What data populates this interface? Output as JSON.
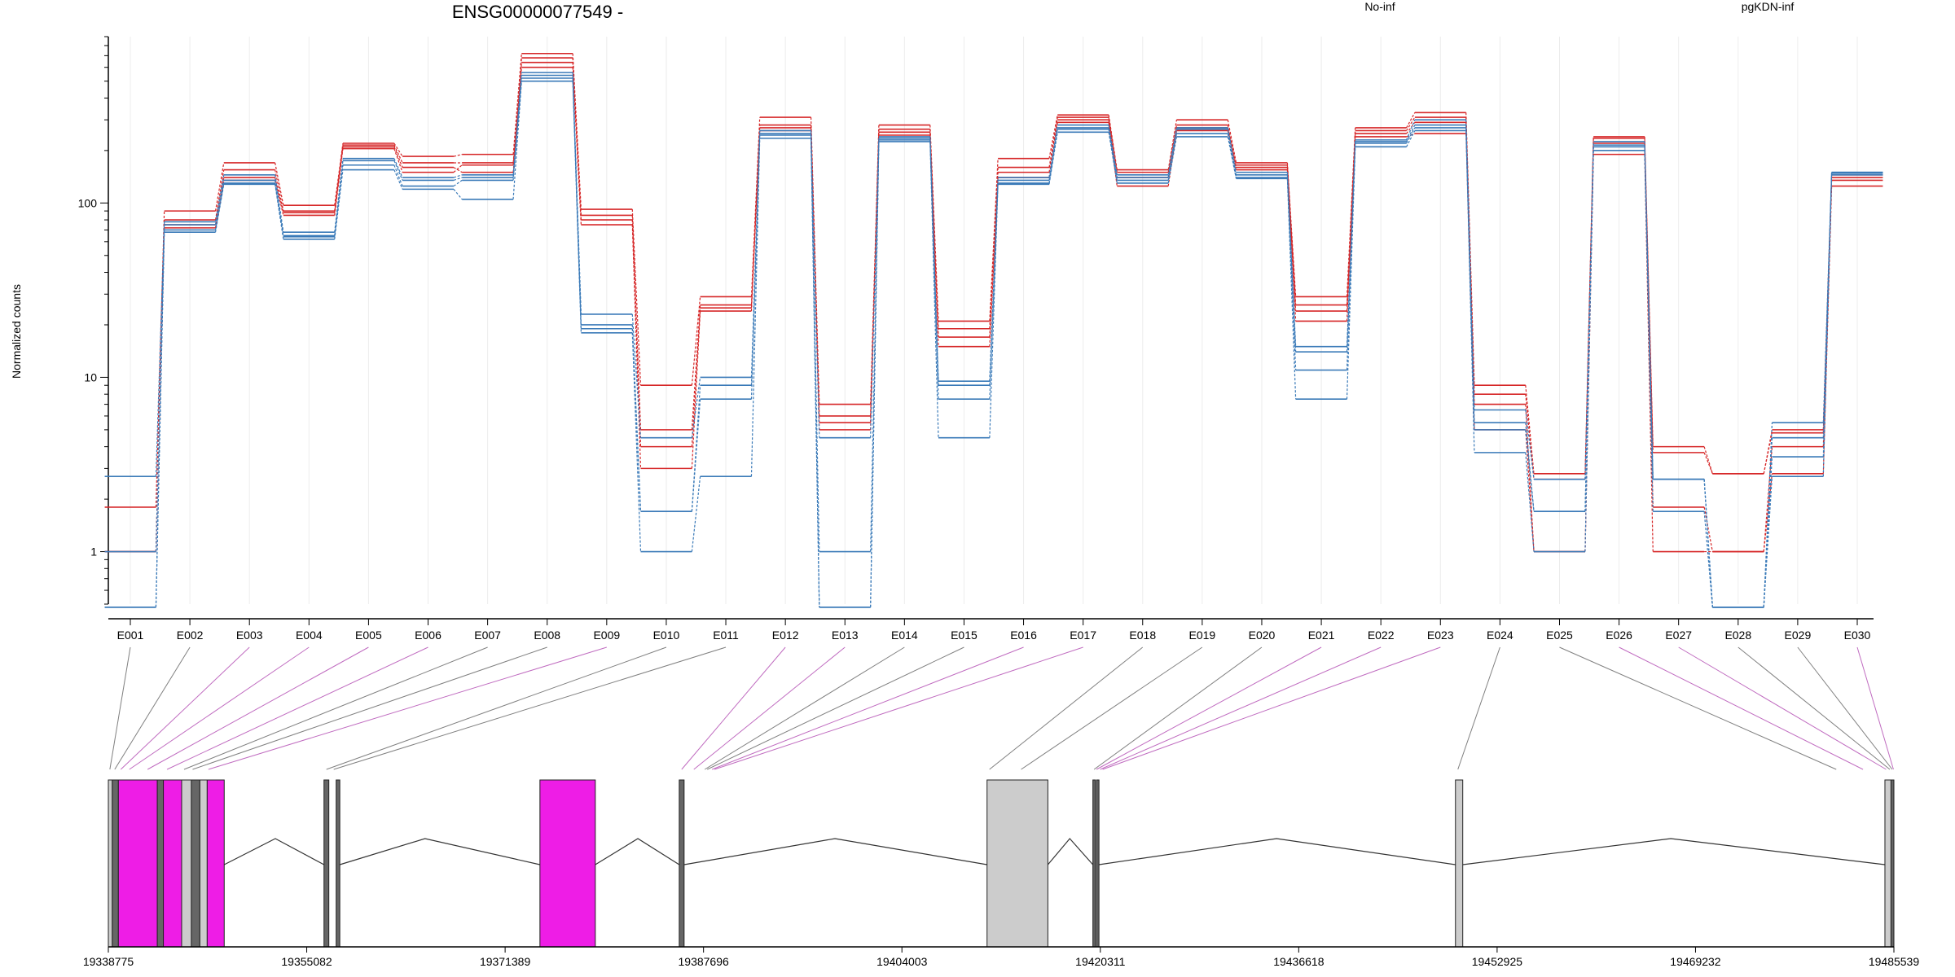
{
  "chart_data": {
    "type": "line",
    "title": "ENSG00000077549 -",
    "ylabel": "Normalized counts",
    "xlabel": "",
    "y_scale": "log",
    "ylim": [
      0.5,
      900
    ],
    "y_ticks": [
      1,
      10,
      100
    ],
    "y_tick_labels": [
      "1",
      "10",
      "100"
    ],
    "grid": "light vertical gridlines at each exon",
    "legend_placement": "top, horizontal",
    "categories": [
      "E001",
      "E002",
      "E003",
      "E004",
      "E005",
      "E006",
      "E007",
      "E008",
      "E009",
      "E010",
      "E011",
      "E012",
      "E013",
      "E014",
      "E015",
      "E016",
      "E017",
      "E018",
      "E019",
      "E020",
      "E021",
      "E022",
      "E023",
      "E024",
      "E025",
      "E026",
      "E027",
      "E028",
      "E029",
      "E030"
    ],
    "groups": [
      {
        "name": "No-inf",
        "color": "#d62728"
      },
      {
        "name": "pgKDN-inf",
        "color": "#3a7ab8"
      }
    ],
    "series": [
      {
        "group": "No-inf",
        "values": [
          1.8,
          90,
          170,
          97,
          220,
          185,
          190,
          720,
          92,
          9,
          29,
          310,
          7,
          280,
          21,
          180,
          320,
          155,
          300,
          170,
          29,
          270,
          330,
          9,
          2.8,
          240,
          4,
          2.8,
          5,
          140
        ]
      },
      {
        "group": "No-inf",
        "values": [
          1.0,
          80,
          155,
          90,
          215,
          170,
          170,
          680,
          85,
          5,
          26,
          280,
          6,
          265,
          19,
          160,
          310,
          150,
          280,
          165,
          26,
          260,
          310,
          8,
          2.6,
          235,
          3.7,
          2.8,
          4.8,
          145
        ]
      },
      {
        "group": "No-inf",
        "values": [
          1.0,
          75,
          140,
          88,
          210,
          160,
          150,
          640,
          80,
          4,
          25,
          270,
          5.5,
          255,
          17,
          150,
          300,
          140,
          270,
          160,
          24,
          250,
          290,
          7,
          1.0,
          220,
          1.8,
          1.0,
          4,
          135
        ]
      },
      {
        "group": "No-inf",
        "values": [
          1.0,
          72,
          135,
          85,
          205,
          150,
          165,
          600,
          75,
          3,
          24,
          260,
          5,
          245,
          15,
          140,
          290,
          125,
          260,
          155,
          21,
          240,
          250,
          5,
          1.0,
          190,
          1.0,
          1.0,
          2.8,
          125
        ]
      },
      {
        "group": "pgKDN-inf",
        "values": [
          2.7,
          78,
          145,
          68,
          180,
          140,
          145,
          560,
          23,
          4.5,
          10,
          260,
          4.5,
          240,
          9.5,
          140,
          280,
          145,
          270,
          150,
          15,
          230,
          300,
          6.5,
          2.6,
          225,
          2.6,
          0.48,
          5.5,
          150
        ]
      },
      {
        "group": "pgKDN-inf",
        "values": [
          1.0,
          75,
          135,
          64,
          175,
          135,
          140,
          540,
          20,
          1.7,
          9,
          250,
          0.48,
          235,
          9,
          135,
          270,
          140,
          265,
          145,
          14,
          225,
          280,
          5.5,
          1.7,
          215,
          2.6,
          0.48,
          4.5,
          145
        ]
      },
      {
        "group": "pgKDN-inf",
        "values": [
          0.48,
          70,
          130,
          65,
          165,
          125,
          135,
          520,
          19,
          1.7,
          7.5,
          245,
          1.0,
          230,
          7.5,
          130,
          265,
          135,
          250,
          140,
          11,
          220,
          270,
          5,
          1.7,
          210,
          2.6,
          0.48,
          3.5,
          150
        ]
      },
      {
        "group": "pgKDN-inf",
        "values": [
          0.48,
          68,
          128,
          62,
          155,
          120,
          105,
          500,
          18,
          1.0,
          2.7,
          235,
          0.48,
          225,
          4.5,
          128,
          255,
          130,
          240,
          138,
          7.5,
          210,
          260,
          3.7,
          1.0,
          200,
          1.7,
          0.48,
          2.7,
          148
        ]
      }
    ],
    "gene_model": {
      "x_tick_labels": [
        "19338775",
        "19355082",
        "19371389",
        "19387696",
        "19404003",
        "19420311",
        "19436618",
        "19452925",
        "19469232",
        "19485539"
      ],
      "x_tick_values": [
        19338775,
        19355082,
        19371389,
        19387696,
        19404003,
        19420311,
        19436618,
        19452925,
        19469232,
        19485539
      ],
      "range": [
        19338775,
        19485539
      ],
      "feature_colors": {
        "significant": "#ee1de6",
        "normal": "#cccccc",
        "thin": "#666666",
        "link_significant": "#c06cc0",
        "link_normal": "#808080"
      },
      "exon_genomic_positions": [
        19338900,
        19339300,
        19339800,
        19340500,
        19342000,
        19343600,
        19345000,
        19345700,
        19347000,
        19356700,
        19357300,
        19385900,
        19386900,
        19387800,
        19388000,
        19388400,
        19388600,
        19411200,
        19413800,
        19419800,
        19420000,
        19420300,
        19420500,
        19449700,
        19480800,
        19483000,
        19484900,
        19485200,
        19485400,
        19485500
      ],
      "exon_significant": [
        false,
        false,
        true,
        true,
        true,
        true,
        false,
        false,
        true,
        false,
        false,
        true,
        true,
        false,
        false,
        true,
        true,
        false,
        false,
        false,
        true,
        true,
        true,
        false,
        false,
        true,
        true,
        false,
        false,
        true
      ],
      "features": [
        {
          "start": 19338775,
          "end": 19339100,
          "kind": "normal"
        },
        {
          "start": 19339100,
          "end": 19339600,
          "kind": "thin"
        },
        {
          "start": 19339600,
          "end": 19342800,
          "kind": "significant"
        },
        {
          "start": 19342800,
          "end": 19343300,
          "kind": "thin"
        },
        {
          "start": 19343300,
          "end": 19344800,
          "kind": "significant"
        },
        {
          "start": 19344800,
          "end": 19345600,
          "kind": "normal"
        },
        {
          "start": 19345600,
          "end": 19346300,
          "kind": "thin"
        },
        {
          "start": 19346300,
          "end": 19346900,
          "kind": "normal"
        },
        {
          "start": 19346900,
          "end": 19348300,
          "kind": "significant"
        },
        {
          "start": 19356500,
          "end": 19356900,
          "kind": "thin"
        },
        {
          "start": 19357500,
          "end": 19357800,
          "kind": "thin"
        },
        {
          "start": 19374250,
          "end": 19378800,
          "kind": "significant"
        },
        {
          "start": 19385700,
          "end": 19386100,
          "kind": "thin"
        },
        {
          "start": 19411000,
          "end": 19416000,
          "kind": "normal"
        },
        {
          "start": 19419700,
          "end": 19419900,
          "kind": "thin"
        },
        {
          "start": 19420000,
          "end": 19420200,
          "kind": "thin"
        },
        {
          "start": 19449500,
          "end": 19450100,
          "kind": "normal"
        },
        {
          "start": 19484800,
          "end": 19485300,
          "kind": "normal"
        },
        {
          "start": 19485300,
          "end": 19485539,
          "kind": "thin"
        }
      ],
      "introns": [
        [
          19348300,
          19356500,
          19352500
        ],
        [
          19357800,
          19374250,
          19364800
        ],
        [
          19378800,
          19385700,
          19382300
        ],
        [
          19386100,
          19411000,
          19398500
        ],
        [
          19416000,
          19419700,
          19417800
        ],
        [
          19420200,
          19449500,
          19434800
        ],
        [
          19450100,
          19484800,
          19467200
        ]
      ]
    }
  }
}
